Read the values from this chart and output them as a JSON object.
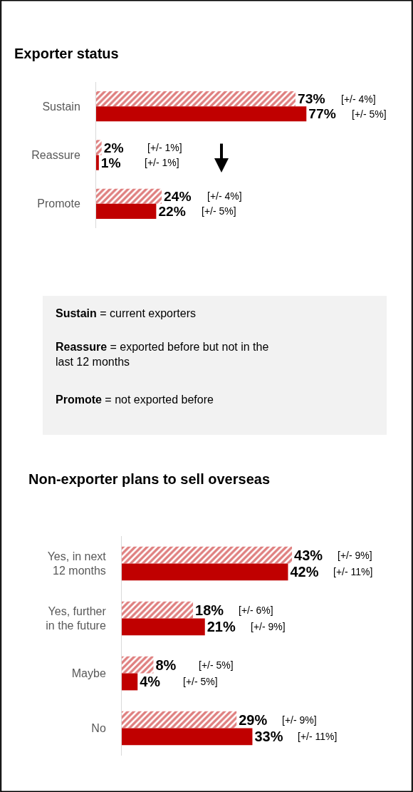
{
  "chart_data": [
    {
      "type": "bar",
      "orientation": "horizontal",
      "title": "Exporter status",
      "categories": [
        "Sustain",
        "Reassure",
        "Promote"
      ],
      "tick_labels": "y",
      "series": [
        {
          "color": "#c00000",
          "values": [
            73,
            2,
            24
          ],
          "value_labels": [
            "73%",
            "2%",
            "24%"
          ]
        },
        {
          "color": "#c00000",
          "values": [
            77,
            1,
            22
          ],
          "value_labels": [
            "77%",
            "1%",
            "22%"
          ]
        }
      ],
      "annotations": [
        "[+/- 4%]",
        "[+/- 5%]",
        "[+/- 1%]",
        "[+/- 1%]",
        "[+/- 4%]",
        "[+/- 5%]"
      ]
    },
    {
      "type": "other",
      "annotations": [
        "Sustain = current exporters",
        "Reassure = exported before but not in the last 12 months",
        "Promote = not exported before"
      ]
    },
    {
      "type": "bar",
      "orientation": "horizontal",
      "title": "Non-exporter plans to sell overseas",
      "categories": [
        "Yes, in next 12 months",
        "Yes, further in the future",
        "Maybe",
        "No"
      ],
      "tick_labels": "y",
      "series": [
        {
          "color": "#c00000",
          "values": [
            43,
            18,
            8,
            29
          ],
          "value_labels": [
            "43%",
            "18%",
            "8%",
            "29%"
          ]
        },
        {
          "color": "#c00000",
          "values": [
            42,
            21,
            4,
            33
          ],
          "value_labels": [
            "42%",
            "21%",
            "4%",
            "33%"
          ]
        }
      ],
      "annotations": [
        "[+/- 9%]",
        "[+/- 11%]",
        "[+/- 6%]",
        "[+/- 9%]",
        "[+/- 5%]",
        "[+/- 5%]",
        "[+/- 9%]",
        "[+/- 11%]"
      ]
    }
  ]
}
